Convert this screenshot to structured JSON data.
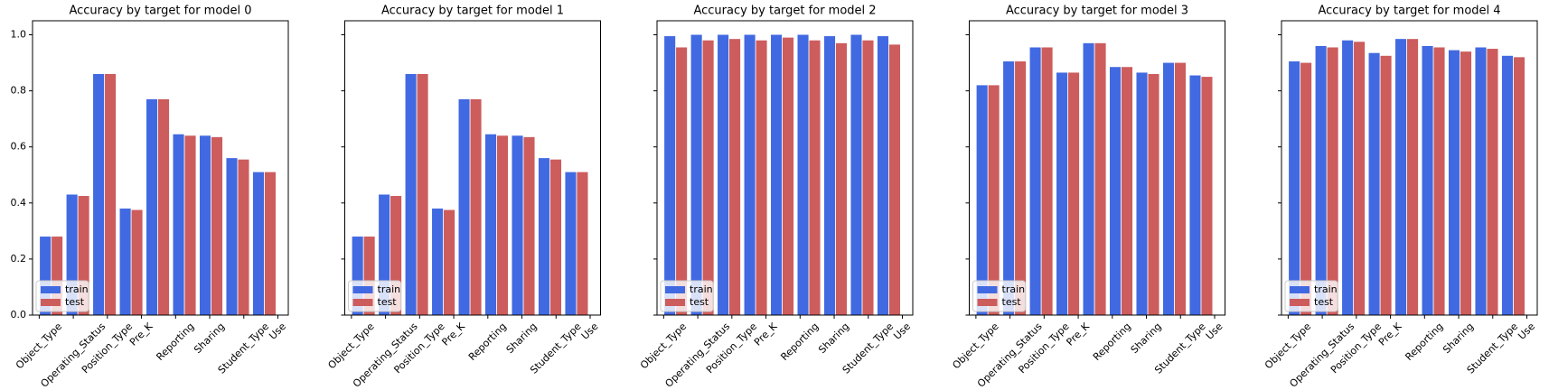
{
  "chart_data": [
    {
      "type": "bar",
      "title": "Accuracy by target for model 0",
      "xlim": [
        -0.7,
        8.9
      ],
      "xticks": [
        {
          "value": -0.45,
          "label": "Object_Type"
        },
        {
          "value": 0.83,
          "label": "Operating_Status"
        },
        {
          "value": 2.11,
          "label": "Position_Type"
        },
        {
          "value": 3.39,
          "label": "Pre_K"
        },
        {
          "value": 4.67,
          "label": "Reporting"
        },
        {
          "value": 5.95,
          "label": "Sharing"
        },
        {
          "value": 7.23,
          "label": "Student_Type"
        },
        {
          "value": 8.51,
          "label": "Use"
        }
      ],
      "ylim": [
        0,
        1.05
      ],
      "yticks": [
        {
          "value": 0,
          "label": "0.0"
        },
        0.2,
        0.4,
        0.6,
        0.8,
        {
          "value": 1,
          "label": "1.0"
        }
      ],
      "legend": "lower left",
      "series": [
        {
          "name": "train",
          "color": "#4169e1",
          "values": [
            0.28,
            0.43,
            0.86,
            0.38,
            0.77,
            0.645,
            0.64,
            0.56,
            0.51
          ]
        },
        {
          "name": "test",
          "color": "#cd5c5c",
          "values": [
            0.28,
            0.425,
            0.86,
            0.375,
            0.77,
            0.64,
            0.635,
            0.555,
            0.51
          ]
        }
      ]
    },
    {
      "type": "bar",
      "title": "Accuracy by target for model 1",
      "xlim": [
        -0.7,
        8.9
      ],
      "xticks": [
        {
          "value": -0.45,
          "label": "Object_Type"
        },
        {
          "value": 0.83,
          "label": "Operating_Status"
        },
        {
          "value": 2.11,
          "label": "Position_Type"
        },
        {
          "value": 3.39,
          "label": "Pre_K"
        },
        {
          "value": 4.67,
          "label": "Reporting"
        },
        {
          "value": 5.95,
          "label": "Sharing"
        },
        {
          "value": 7.23,
          "label": "Student_Type"
        },
        {
          "value": 8.51,
          "label": "Use"
        }
      ],
      "ylim": [
        0,
        1.05
      ],
      "legend": "lower left",
      "series": [
        {
          "name": "train",
          "color": "#4169e1",
          "values": [
            0.28,
            0.43,
            0.86,
            0.38,
            0.77,
            0.645,
            0.64,
            0.56,
            0.51
          ]
        },
        {
          "name": "test",
          "color": "#cd5c5c",
          "values": [
            0.28,
            0.425,
            0.86,
            0.375,
            0.77,
            0.64,
            0.635,
            0.555,
            0.51
          ]
        }
      ]
    },
    {
      "type": "bar",
      "title": "Accuracy by target for model 2",
      "xlim": [
        -0.7,
        8.9
      ],
      "xticks": [
        {
          "value": -0.45,
          "label": "Object_Type"
        },
        {
          "value": 0.83,
          "label": "Operating_Status"
        },
        {
          "value": 2.11,
          "label": "Position_Type"
        },
        {
          "value": 3.39,
          "label": "Pre_K"
        },
        {
          "value": 4.67,
          "label": "Reporting"
        },
        {
          "value": 5.95,
          "label": "Sharing"
        },
        {
          "value": 7.23,
          "label": "Student_Type"
        },
        {
          "value": 8.51,
          "label": "Use"
        }
      ],
      "ylim": [
        0,
        1.05
      ],
      "legend": "lower left",
      "series": [
        {
          "name": "train",
          "color": "#4169e1",
          "values": [
            0.995,
            1.0,
            1.0,
            1.0,
            1.0,
            1.0,
            0.995,
            1.0,
            0.995
          ]
        },
        {
          "name": "test",
          "color": "#cd5c5c",
          "values": [
            0.955,
            0.98,
            0.985,
            0.98,
            0.99,
            0.98,
            0.97,
            0.98,
            0.965
          ]
        }
      ]
    },
    {
      "type": "bar",
      "title": "Accuracy by target for model 3",
      "xlim": [
        -0.7,
        8.9
      ],
      "xticks": [
        {
          "value": -0.45,
          "label": "Object_Type"
        },
        {
          "value": 0.83,
          "label": "Operating_Status"
        },
        {
          "value": 2.11,
          "label": "Position_Type"
        },
        {
          "value": 3.39,
          "label": "Pre_K"
        },
        {
          "value": 4.67,
          "label": "Reporting"
        },
        {
          "value": 5.95,
          "label": "Sharing"
        },
        {
          "value": 7.23,
          "label": "Student_Type"
        },
        {
          "value": 8.51,
          "label": "Use"
        }
      ],
      "ylim": [
        0,
        1.05
      ],
      "legend": "lower left",
      "series": [
        {
          "name": "train",
          "color": "#4169e1",
          "values": [
            0.82,
            0.905,
            0.955,
            0.865,
            0.97,
            0.885,
            0.865,
            0.9,
            0.855
          ]
        },
        {
          "name": "test",
          "color": "#cd5c5c",
          "values": [
            0.82,
            0.905,
            0.955,
            0.865,
            0.97,
            0.885,
            0.86,
            0.9,
            0.85
          ]
        }
      ]
    },
    {
      "type": "bar",
      "title": "Accuracy by target for model 4",
      "xlim": [
        -0.7,
        8.9
      ],
      "xticks": [
        {
          "value": -0.45,
          "label": "Object_Type"
        },
        {
          "value": 0.83,
          "label": "Operating_Status"
        },
        {
          "value": 2.11,
          "label": "Position_Type"
        },
        {
          "value": 3.39,
          "label": "Pre_K"
        },
        {
          "value": 4.67,
          "label": "Reporting"
        },
        {
          "value": 5.95,
          "label": "Sharing"
        },
        {
          "value": 7.23,
          "label": "Student_Type"
        },
        {
          "value": 8.51,
          "label": "Use"
        }
      ],
      "ylim": [
        0,
        1.05
      ],
      "legend": "lower left",
      "series": [
        {
          "name": "train",
          "color": "#4169e1",
          "values": [
            0.905,
            0.96,
            0.98,
            0.935,
            0.985,
            0.96,
            0.945,
            0.955,
            0.925
          ]
        },
        {
          "name": "test",
          "color": "#cd5c5c",
          "values": [
            0.9,
            0.955,
            0.975,
            0.925,
            0.985,
            0.955,
            0.94,
            0.95,
            0.92
          ]
        }
      ]
    }
  ]
}
